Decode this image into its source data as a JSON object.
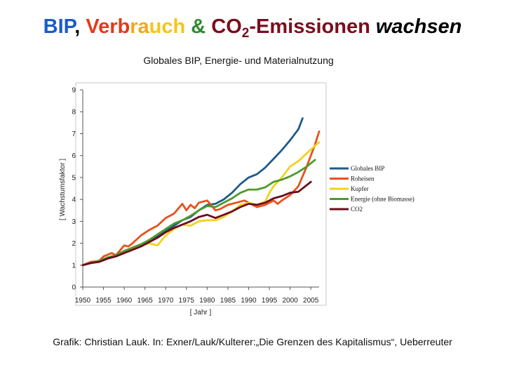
{
  "slide": {
    "title_parts": [
      {
        "text": "BIP",
        "color": "#1a5cc8"
      },
      {
        "text": ", ",
        "color": "#000000"
      },
      {
        "text": "Verb",
        "color": "#e23a1b"
      },
      {
        "text": "ra",
        "color": "#f0a81c"
      },
      {
        "text": "uch",
        "color": "#f5c518"
      },
      {
        "text": " & ",
        "color": "#2e8a2e"
      },
      {
        "text": "CO",
        "color": "#7a0d1e"
      },
      {
        "text": "2",
        "color": "#7a0d1e",
        "sub": true
      },
      {
        "text": "-Emissionen ",
        "color": "#7a0d1e"
      },
      {
        "text": "wachsen",
        "color": "#000000",
        "italic": true
      }
    ],
    "caption": "Grafik: Christian Lauk. In: Exner/Lauk/Kulterer:„Die Grenzen des Kapitalismus“, Ueberreuter"
  },
  "chart_data": {
    "type": "line",
    "title": "Globales BIP, Energie- und Materialnutzung",
    "xlabel": "[ Jahr ]",
    "ylabel": "[ Wachstumsfaktor ]",
    "xlim": [
      1950,
      2007
    ],
    "ylim": [
      0,
      9
    ],
    "xticks": [
      1950,
      1955,
      1960,
      1965,
      1970,
      1975,
      1980,
      1985,
      1990,
      1995,
      2000,
      2005
    ],
    "yticks": [
      0,
      1,
      2,
      3,
      4,
      5,
      6,
      7,
      8,
      9
    ],
    "grid": false,
    "legend_position": "right",
    "series": [
      {
        "name": "Globales BIP",
        "color": "#1f5a8a",
        "x": [
          1950,
          1952,
          1954,
          1956,
          1958,
          1960,
          1962,
          1964,
          1966,
          1968,
          1970,
          1972,
          1974,
          1976,
          1978,
          1980,
          1982,
          1984,
          1986,
          1988,
          1990,
          1992,
          1994,
          1996,
          1998,
          2000,
          2002,
          2003
        ],
        "y": [
          1.0,
          1.1,
          1.2,
          1.35,
          1.45,
          1.6,
          1.75,
          1.9,
          2.1,
          2.35,
          2.55,
          2.8,
          3.05,
          3.2,
          3.5,
          3.75,
          3.8,
          4.0,
          4.3,
          4.7,
          5.0,
          5.15,
          5.45,
          5.85,
          6.25,
          6.7,
          7.2,
          7.7
        ]
      },
      {
        "name": "Roheisen",
        "color": "#e8511c",
        "x": [
          1950,
          1952,
          1954,
          1955,
          1957,
          1958,
          1960,
          1961,
          1962,
          1964,
          1966,
          1968,
          1970,
          1972,
          1974,
          1975,
          1976,
          1977,
          1978,
          1980,
          1982,
          1983,
          1985,
          1987,
          1989,
          1990,
          1992,
          1994,
          1996,
          1997,
          1998,
          2000,
          2002,
          2004,
          2006,
          2007
        ],
        "y": [
          1.0,
          1.15,
          1.2,
          1.4,
          1.55,
          1.45,
          1.9,
          1.85,
          2.0,
          2.35,
          2.6,
          2.8,
          3.15,
          3.35,
          3.8,
          3.5,
          3.75,
          3.6,
          3.85,
          3.95,
          3.5,
          3.55,
          3.75,
          3.85,
          3.95,
          3.85,
          3.65,
          3.75,
          3.95,
          3.8,
          3.95,
          4.2,
          4.6,
          5.5,
          6.5,
          7.1
        ]
      },
      {
        "name": "Kupfer",
        "color": "#f2d21e",
        "x": [
          1950,
          1952,
          1954,
          1956,
          1958,
          1960,
          1962,
          1964,
          1966,
          1968,
          1970,
          1972,
          1974,
          1976,
          1978,
          1980,
          1982,
          1984,
          1986,
          1988,
          1990,
          1992,
          1994,
          1995,
          1996,
          1998,
          2000,
          2002,
          2004,
          2006,
          2007
        ],
        "y": [
          1.0,
          1.1,
          1.2,
          1.35,
          1.4,
          1.65,
          1.75,
          1.9,
          2.0,
          1.9,
          2.35,
          2.65,
          2.85,
          2.8,
          3.0,
          3.05,
          3.05,
          3.2,
          3.45,
          3.75,
          3.85,
          3.75,
          3.9,
          4.3,
          4.6,
          5.0,
          5.5,
          5.75,
          6.1,
          6.45,
          6.6
        ]
      },
      {
        "name": "Energie (ohne Biomasse)",
        "color": "#4f9a2c",
        "x": [
          1950,
          1952,
          1954,
          1956,
          1958,
          1960,
          1962,
          1964,
          1966,
          1968,
          1970,
          1972,
          1974,
          1976,
          1978,
          1980,
          1982,
          1984,
          1986,
          1988,
          1990,
          1992,
          1994,
          1996,
          1998,
          2000,
          2002,
          2004,
          2006
        ],
        "y": [
          1.0,
          1.1,
          1.2,
          1.35,
          1.45,
          1.65,
          1.8,
          1.95,
          2.15,
          2.4,
          2.65,
          2.9,
          3.05,
          3.25,
          3.5,
          3.7,
          3.65,
          3.85,
          4.05,
          4.3,
          4.45,
          4.45,
          4.55,
          4.8,
          4.9,
          5.05,
          5.25,
          5.5,
          5.8
        ]
      },
      {
        "name": "CO2",
        "color": "#6b0d1c",
        "x": [
          1950,
          1952,
          1954,
          1956,
          1958,
          1960,
          1962,
          1964,
          1966,
          1968,
          1970,
          1972,
          1974,
          1976,
          1978,
          1980,
          1982,
          1984,
          1986,
          1988,
          1990,
          1992,
          1994,
          1996,
          1998,
          2000,
          2002,
          2004,
          2005
        ],
        "y": [
          1.0,
          1.1,
          1.15,
          1.3,
          1.4,
          1.55,
          1.7,
          1.85,
          2.05,
          2.25,
          2.5,
          2.7,
          2.85,
          3.0,
          3.2,
          3.3,
          3.15,
          3.3,
          3.45,
          3.65,
          3.8,
          3.75,
          3.85,
          4.05,
          4.15,
          4.3,
          4.35,
          4.65,
          4.8
        ]
      }
    ]
  }
}
